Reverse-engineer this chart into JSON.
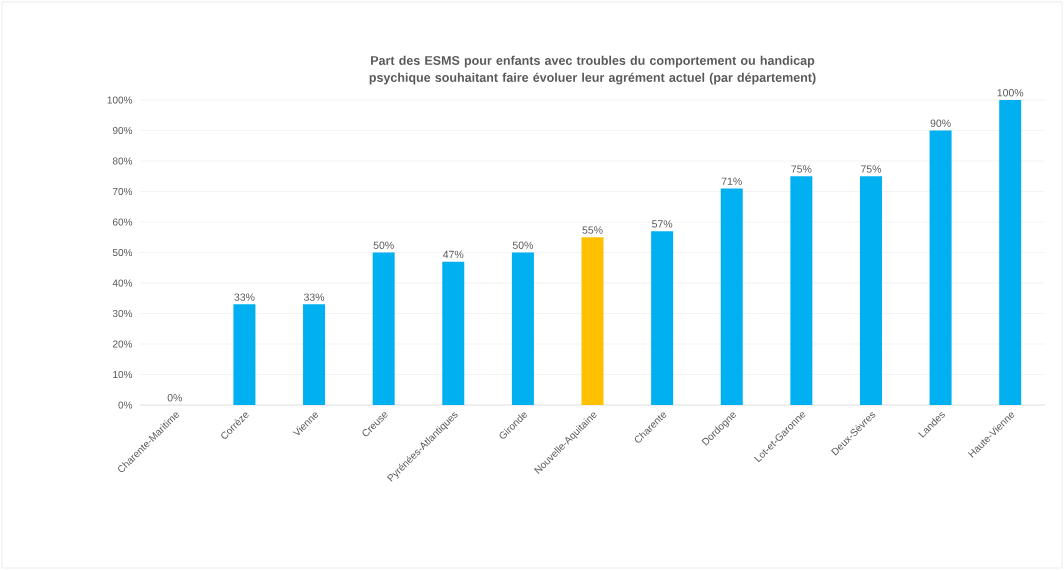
{
  "chart_data": {
    "type": "bar",
    "title": "Part des ESMS pour enfants avec troubles du comportement ou handicap psychique souhaitant  faire évoluer leur agrément actuel (par département)",
    "categories": [
      "Charente-Maritime",
      "Corrèze",
      "Vienne",
      "Creuse",
      "Pyrénées-Atlantiques",
      "Gironde",
      "Nouvelle-Aquitaine",
      "Charente",
      "Dordogne",
      "Lot-et-Garonne",
      "Deux-Sèvres",
      "Landes",
      "Haute-Vienne"
    ],
    "values": [
      0,
      33,
      33,
      50,
      47,
      50,
      55,
      57,
      71,
      75,
      75,
      90,
      100
    ],
    "colors": [
      "#00b0f0",
      "#00b0f0",
      "#00b0f0",
      "#00b0f0",
      "#00b0f0",
      "#00b0f0",
      "#ffc000",
      "#00b0f0",
      "#00b0f0",
      "#00b0f0",
      "#00b0f0",
      "#00b0f0",
      "#00b0f0"
    ],
    "value_labels": [
      "0%",
      "33%",
      "33%",
      "50%",
      "47%",
      "50%",
      "55%",
      "57%",
      "71%",
      "75%",
      "75%",
      "90%",
      "100%"
    ],
    "ylim": [
      0,
      100
    ],
    "yticks": [
      {
        "value": 0,
        "label": "0%"
      },
      {
        "value": 10,
        "label": "10%"
      },
      {
        "value": 20,
        "label": "20%"
      },
      {
        "value": 30,
        "label": "30%"
      },
      {
        "value": 40,
        "label": "40%"
      },
      {
        "value": 50,
        "label": "50%"
      },
      {
        "value": 60,
        "label": "60%"
      },
      {
        "value": 70,
        "label": "70%"
      },
      {
        "value": 80,
        "label": "80%"
      },
      {
        "value": 90,
        "label": "90%"
      },
      {
        "value": 100,
        "label": "100%"
      }
    ],
    "grid": "y"
  }
}
